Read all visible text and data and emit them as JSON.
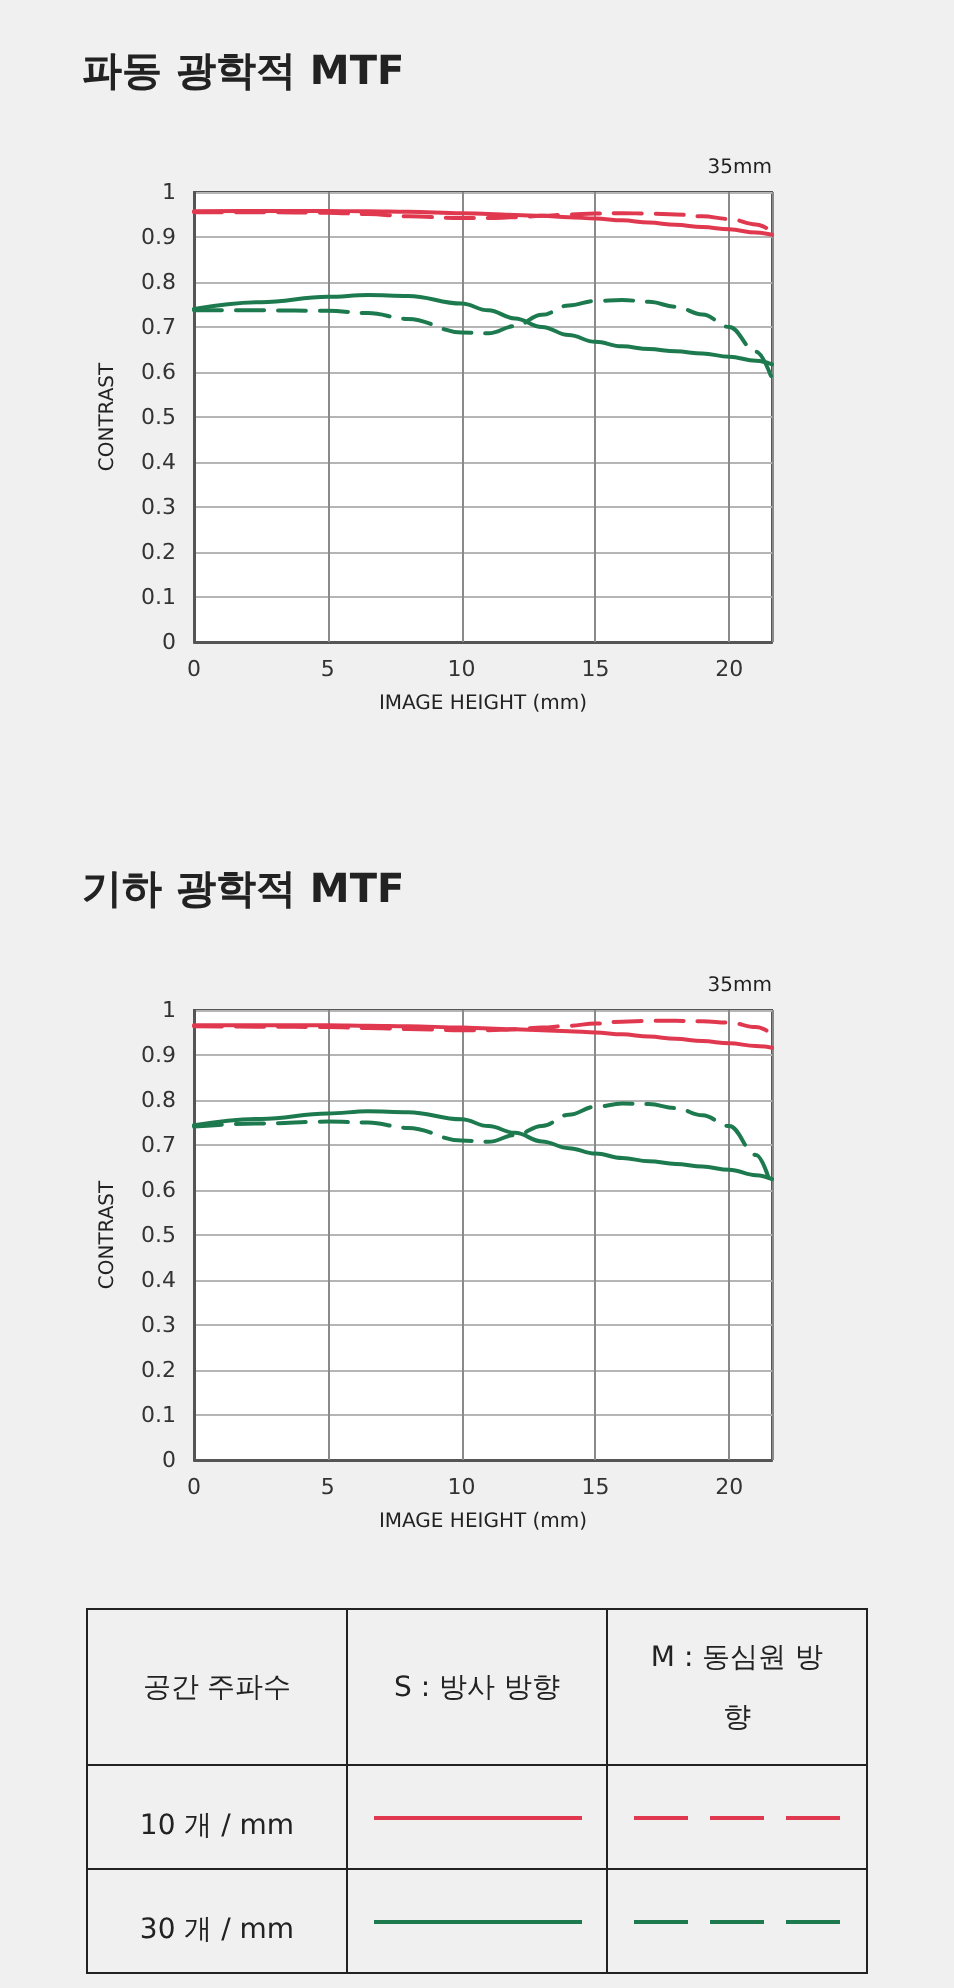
{
  "chart_data": [
    {
      "type": "line",
      "title": "파동 광학적 MTF",
      "xlabel": "IMAGE HEIGHT (mm)",
      "ylabel": "CONTRAST",
      "annotations": [
        "35mm"
      ],
      "xlim": [
        0,
        21.6
      ],
      "xticks": [
        0,
        5,
        10,
        15,
        20
      ],
      "ylim": [
        0,
        1
      ],
      "yticks": [
        0,
        0.1,
        0.2,
        0.3,
        0.4,
        0.5,
        0.6,
        0.7,
        0.8,
        0.9,
        1
      ],
      "grid": true,
      "x": [
        0,
        2.5,
        5,
        6.5,
        8,
        10,
        11,
        12,
        13,
        14,
        15,
        16,
        17,
        18,
        19,
        20,
        21,
        21.6
      ],
      "series": [
        {
          "color": "#e0384f",
          "line_style": "solid",
          "values": [
            0.957,
            0.958,
            0.958,
            0.957,
            0.956,
            0.953,
            0.951,
            0.949,
            0.947,
            0.944,
            0.941,
            0.937,
            0.932,
            0.927,
            0.922,
            0.917,
            0.91,
            0.905
          ]
        },
        {
          "color": "#e0384f",
          "line_style": "dashed",
          "values": [
            0.955,
            0.955,
            0.954,
            0.951,
            0.946,
            0.942,
            0.942,
            0.944,
            0.947,
            0.95,
            0.952,
            0.953,
            0.952,
            0.95,
            0.946,
            0.94,
            0.928,
            0.912
          ]
        },
        {
          "color": "#1d7a4f",
          "line_style": "solid",
          "values": [
            0.74,
            0.755,
            0.767,
            0.771,
            0.769,
            0.752,
            0.737,
            0.719,
            0.7,
            0.682,
            0.667,
            0.657,
            0.651,
            0.646,
            0.641,
            0.634,
            0.625,
            0.617
          ]
        },
        {
          "color": "#1d7a4f",
          "line_style": "dashed",
          "values": [
            0.737,
            0.737,
            0.736,
            0.731,
            0.718,
            0.688,
            0.686,
            0.702,
            0.727,
            0.748,
            0.758,
            0.76,
            0.756,
            0.745,
            0.728,
            0.7,
            0.645,
            0.585
          ]
        }
      ]
    },
    {
      "type": "line",
      "title": "기하 광학적 MTF",
      "xlabel": "IMAGE HEIGHT (mm)",
      "ylabel": "CONTRAST",
      "annotations": [
        "35mm"
      ],
      "xlim": [
        0,
        21.6
      ],
      "xticks": [
        0,
        5,
        10,
        15,
        20
      ],
      "ylim": [
        0,
        1
      ],
      "yticks": [
        0,
        0.1,
        0.2,
        0.3,
        0.4,
        0.5,
        0.6,
        0.7,
        0.8,
        0.9,
        1
      ],
      "grid": true,
      "x": [
        0,
        2.5,
        5,
        6.5,
        8,
        10,
        11,
        12,
        13,
        14,
        15,
        16,
        17,
        18,
        19,
        20,
        21,
        21.6
      ],
      "series": [
        {
          "color": "#e0384f",
          "line_style": "solid",
          "values": [
            0.966,
            0.966,
            0.966,
            0.965,
            0.964,
            0.961,
            0.959,
            0.957,
            0.955,
            0.953,
            0.95,
            0.946,
            0.941,
            0.936,
            0.931,
            0.926,
            0.92,
            0.916
          ]
        },
        {
          "color": "#e0384f",
          "line_style": "dashed",
          "values": [
            0.964,
            0.963,
            0.962,
            0.96,
            0.958,
            0.955,
            0.955,
            0.957,
            0.961,
            0.965,
            0.97,
            0.974,
            0.976,
            0.976,
            0.975,
            0.972,
            0.962,
            0.947
          ]
        },
        {
          "color": "#1d7a4f",
          "line_style": "solid",
          "values": [
            0.744,
            0.758,
            0.77,
            0.775,
            0.773,
            0.757,
            0.742,
            0.727,
            0.708,
            0.693,
            0.681,
            0.671,
            0.664,
            0.658,
            0.652,
            0.645,
            0.633,
            0.624
          ]
        },
        {
          "color": "#1d7a4f",
          "line_style": "dashed",
          "values": [
            0.741,
            0.748,
            0.752,
            0.75,
            0.738,
            0.71,
            0.707,
            0.722,
            0.742,
            0.767,
            0.785,
            0.792,
            0.791,
            0.782,
            0.766,
            0.742,
            0.678,
            0.604
          ]
        }
      ]
    },
    {
      "type": "other",
      "annotations": [
        "공간 주파수",
        "S : 방사 방향",
        "M : 동심원 방향",
        "10 개 / mm",
        "30 개 / mm"
      ]
    }
  ]
}
